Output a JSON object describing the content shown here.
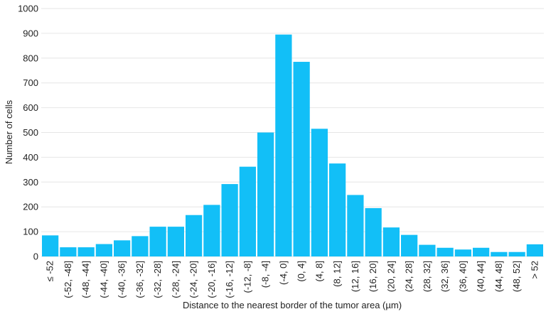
{
  "chart_data": {
    "type": "bar",
    "title": "",
    "xlabel": "Distance to the nearest border of the tumor area (µm)",
    "ylabel": "Number of cells",
    "ylim": [
      0,
      1000
    ],
    "yticks": [
      0,
      100,
      200,
      300,
      400,
      500,
      600,
      700,
      800,
      900,
      1000
    ],
    "grid": true,
    "bar_color": "#12bff7",
    "categories": [
      "≤ -52",
      "(-52, -48]",
      "(-48, -44]",
      "(-44, -40]",
      "(-40, -36]",
      "(-36, -32]",
      "(-32, -28]",
      "(-28, -24]",
      "(-24, -20]",
      "(-20, -16]",
      "(-16, -12]",
      "(-12, -8]",
      "(-8, -4]",
      "(-4, 0]",
      "(0, 4]",
      "(4, 8]",
      "(8, 12]",
      "(12, 16]",
      "(16, 20]",
      "(20, 24]",
      "(24, 28]",
      "(28, 32]",
      "(32, 36]",
      "(36, 40]",
      "(40, 44]",
      "(44, 48]",
      "(48, 52]",
      "> 52"
    ],
    "values": [
      85,
      37,
      37,
      50,
      65,
      82,
      120,
      120,
      167,
      208,
      292,
      362,
      500,
      895,
      785,
      515,
      375,
      248,
      195,
      117,
      87,
      47,
      35,
      28,
      35,
      18,
      18,
      49
    ]
  }
}
